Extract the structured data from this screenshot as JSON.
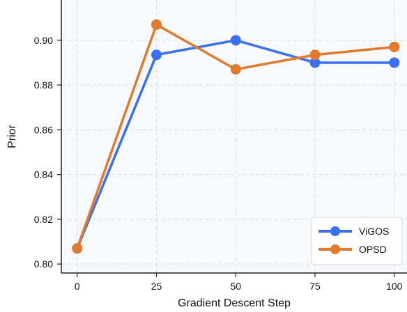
{
  "chart_data": {
    "type": "line",
    "x": [
      0,
      25,
      50,
      75,
      100
    ],
    "xlabel": "Gradient Descent Step",
    "ylabel": "Prior",
    "xlim": [
      -5,
      104
    ],
    "ylim": [
      0.796,
      0.918
    ],
    "xticks": [
      "0",
      "25",
      "50",
      "75",
      "100"
    ],
    "yticks": [
      "0.80",
      "0.82",
      "0.84",
      "0.86",
      "0.88",
      "0.90"
    ],
    "xtick_values": [
      0,
      25,
      50,
      75,
      100
    ],
    "ytick_values": [
      0.8,
      0.82,
      0.84,
      0.86,
      0.88,
      0.9
    ],
    "grid": true,
    "legend_position": "bottom-right",
    "series": [
      {
        "name": "ViGOS",
        "color": "#3a6ff0",
        "values": [
          0.807,
          0.8935,
          0.9,
          0.89,
          0.89
        ]
      },
      {
        "name": "OPSD",
        "color": "#e07b2e",
        "values": [
          0.807,
          0.907,
          0.887,
          0.8935,
          0.897
        ]
      }
    ]
  }
}
